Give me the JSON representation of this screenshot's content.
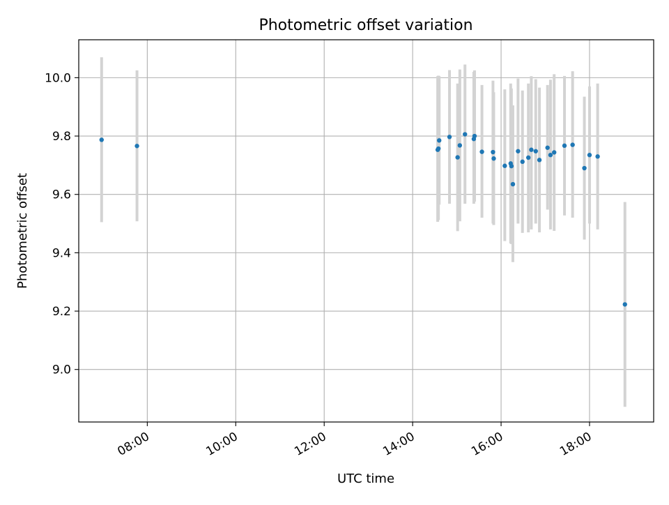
{
  "chart_data": {
    "type": "scatter",
    "title": "Photometric offset variation",
    "xlabel": "UTC time",
    "ylabel": "Photometric offset",
    "x_axis_type": "time",
    "x_range": [
      "06:27",
      "19:27"
    ],
    "ylim": [
      8.82,
      10.13
    ],
    "x_ticks": [
      "08:00",
      "10:00",
      "12:00",
      "14:00",
      "16:00",
      "18:00"
    ],
    "y_ticks": [
      "9.0",
      "9.2",
      "9.4",
      "9.6",
      "9.8",
      "10.0"
    ],
    "grid": true,
    "colors": {
      "marker": "#1f77b4",
      "errorbar": "#d3d3d3",
      "grid": "#b0b0b0",
      "axes": "#000000"
    },
    "series": [
      {
        "points": [
          {
            "t": "06:58",
            "y": 9.787,
            "lo": 9.505,
            "hi": 10.07
          },
          {
            "t": "07:46",
            "y": 9.766,
            "lo": 9.508,
            "hi": 10.025
          },
          {
            "t": "14:34",
            "y": 9.753,
            "lo": 9.506,
            "hi": 10.005
          },
          {
            "t": "14:35",
            "y": 9.757,
            "lo": 9.512,
            "hi": 10.007
          },
          {
            "t": "14:36",
            "y": 9.785,
            "lo": 9.565,
            "hi": 10.005
          },
          {
            "t": "14:50",
            "y": 9.797,
            "lo": 9.568,
            "hi": 10.026
          },
          {
            "t": "15:01",
            "y": 9.727,
            "lo": 9.474,
            "hi": 9.98
          },
          {
            "t": "15:04",
            "y": 9.768,
            "lo": 9.508,
            "hi": 10.028
          },
          {
            "t": "15:11",
            "y": 9.806,
            "lo": 9.568,
            "hi": 10.045
          },
          {
            "t": "15:23",
            "y": 9.79,
            "lo": 9.568,
            "hi": 10.02
          },
          {
            "t": "15:24",
            "y": 9.8,
            "lo": 9.575,
            "hi": 10.025
          },
          {
            "t": "15:34",
            "y": 9.746,
            "lo": 9.52,
            "hi": 9.975
          },
          {
            "t": "15:49",
            "y": 9.745,
            "lo": 9.5,
            "hi": 9.99
          },
          {
            "t": "15:50",
            "y": 9.723,
            "lo": 9.495,
            "hi": 9.95
          },
          {
            "t": "16:05",
            "y": 9.698,
            "lo": 9.44,
            "hi": 9.96
          },
          {
            "t": "16:13",
            "y": 9.706,
            "lo": 9.432,
            "hi": 9.98
          },
          {
            "t": "16:14",
            "y": 9.697,
            "lo": 9.43,
            "hi": 9.963
          },
          {
            "t": "16:16",
            "y": 9.635,
            "lo": 9.368,
            "hi": 9.905
          },
          {
            "t": "16:23",
            "y": 9.748,
            "lo": 9.5,
            "hi": 9.997
          },
          {
            "t": "16:29",
            "y": 9.712,
            "lo": 9.468,
            "hi": 9.956
          },
          {
            "t": "16:37",
            "y": 9.726,
            "lo": 9.47,
            "hi": 9.98
          },
          {
            "t": "16:41",
            "y": 9.753,
            "lo": 9.48,
            "hi": 10.005
          },
          {
            "t": "16:47",
            "y": 9.748,
            "lo": 9.5,
            "hi": 9.995
          },
          {
            "t": "16:52",
            "y": 9.718,
            "lo": 9.47,
            "hi": 9.966
          },
          {
            "t": "17:03",
            "y": 9.76,
            "lo": 9.548,
            "hi": 9.975
          },
          {
            "t": "17:07",
            "y": 9.735,
            "lo": 9.48,
            "hi": 9.993
          },
          {
            "t": "17:12",
            "y": 9.744,
            "lo": 9.475,
            "hi": 10.012
          },
          {
            "t": "17:26",
            "y": 9.767,
            "lo": 9.528,
            "hi": 10.006
          },
          {
            "t": "17:37",
            "y": 9.77,
            "lo": 9.52,
            "hi": 10.022
          },
          {
            "t": "17:53",
            "y": 9.69,
            "lo": 9.445,
            "hi": 9.935
          },
          {
            "t": "18:00",
            "y": 9.735,
            "lo": 9.5,
            "hi": 9.97
          },
          {
            "t": "18:11",
            "y": 9.73,
            "lo": 9.48,
            "hi": 9.98
          },
          {
            "t": "18:48",
            "y": 9.223,
            "lo": 8.872,
            "hi": 9.574
          }
        ]
      }
    ]
  }
}
